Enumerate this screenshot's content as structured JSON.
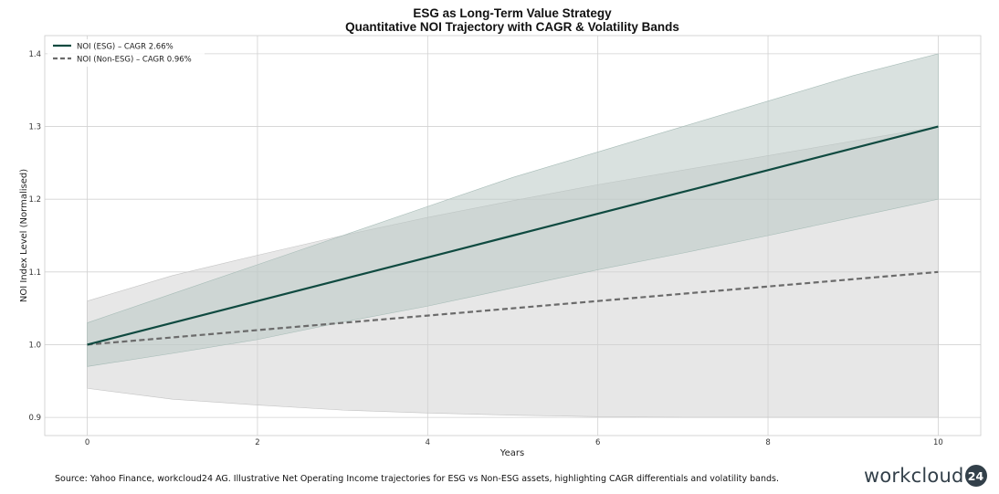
{
  "chart_data": {
    "type": "line",
    "title": "ESG as Long-Term Value Strategy",
    "subtitle": "Quantitative NOI Trajectory with CAGR & Volatility Bands",
    "xlabel": "Years",
    "ylabel": "NOI Index Level (Normalised)",
    "xlim": [
      -0.5,
      10.5
    ],
    "ylim": [
      0.875,
      1.425
    ],
    "xticks": [
      0,
      2,
      4,
      6,
      8,
      10
    ],
    "yticks": [
      0.9,
      1.0,
      1.1,
      1.2,
      1.3,
      1.4
    ],
    "ytick_labels": [
      "0.9",
      "1.0",
      "1.1",
      "1.2",
      "1.3",
      "1.4"
    ],
    "grid": true,
    "legend_position": "top-left",
    "x": [
      0,
      1,
      2,
      3,
      4,
      5,
      6,
      7,
      8,
      9,
      10
    ],
    "series": [
      {
        "name": "NOI (ESG) – CAGR 2.66%",
        "style": "solid",
        "color": "#0f4a40",
        "values": [
          1.0,
          1.03,
          1.06,
          1.09,
          1.12,
          1.15,
          1.18,
          1.21,
          1.24,
          1.27,
          1.3
        ],
        "band_lower": [
          0.97,
          0.988,
          1.007,
          1.031,
          1.053,
          1.078,
          1.103,
          1.126,
          1.15,
          1.175,
          1.2
        ],
        "band_upper": [
          1.03,
          1.07,
          1.11,
          1.15,
          1.19,
          1.23,
          1.265,
          1.3,
          1.335,
          1.37,
          1.4
        ],
        "band_color": "#b9c9c5"
      },
      {
        "name": "NOI (Non-ESG) – CAGR 0.96%",
        "style": "dashed",
        "color": "#6b6b6b",
        "values": [
          1.0,
          1.01,
          1.02,
          1.03,
          1.04,
          1.05,
          1.06,
          1.07,
          1.08,
          1.09,
          1.1
        ],
        "band_lower": [
          0.94,
          0.925,
          0.917,
          0.91,
          0.906,
          0.903,
          0.901,
          0.9,
          0.9,
          0.9,
          0.9
        ],
        "band_upper": [
          1.06,
          1.095,
          1.123,
          1.15,
          1.175,
          1.198,
          1.22,
          1.24,
          1.26,
          1.28,
          1.3
        ],
        "band_color": "#cfcfcf"
      }
    ]
  },
  "footer": {
    "source": "Source: Yahoo Finance, workcloud24 AG. Illustrative Net Operating Income trajectories for ESG vs Non-ESG assets, highlighting CAGR differentials and volatility bands.",
    "brand_name": "workcloud",
    "brand_badge": "24"
  }
}
